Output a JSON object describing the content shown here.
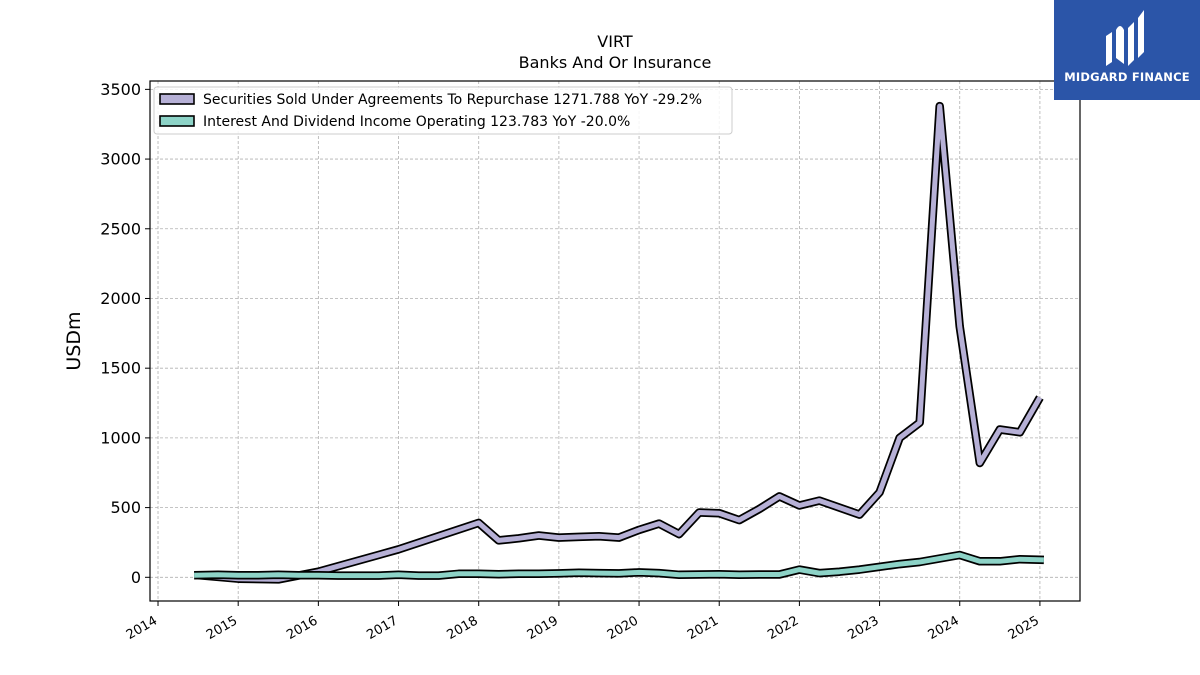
{
  "chart_data": {
    "type": "line",
    "title": "VIRT",
    "subtitle": "Banks And Or Insurance",
    "xlabel": "",
    "ylabel": "USDm",
    "xlim": [
      2013.9,
      2025.5
    ],
    "ylim": [
      -170,
      3560
    ],
    "y_ticks": [
      0,
      500,
      1000,
      1500,
      2000,
      2500,
      3000,
      3500
    ],
    "x_ticks": [
      "2014",
      "2015",
      "2016",
      "2017",
      "2018",
      "2019",
      "2020",
      "2021",
      "2022",
      "2023",
      "2024",
      "2025"
    ],
    "grid": true,
    "legend_position": "top-left",
    "series": [
      {
        "name": "Securities Sold Under Agreements To Repurchase",
        "legend_label": "Securities Sold Under Agreements To Repurchase  1271.788 YoY -29.2%",
        "color": "#b6b0d6",
        "points": [
          [
            2014.5,
            15
          ],
          [
            2015.0,
            -10
          ],
          [
            2015.5,
            -15
          ],
          [
            2016.0,
            40
          ],
          [
            2017.0,
            200
          ],
          [
            2018.0,
            390
          ],
          [
            2018.25,
            265
          ],
          [
            2018.5,
            280
          ],
          [
            2018.75,
            300
          ],
          [
            2019.0,
            285
          ],
          [
            2019.25,
            290
          ],
          [
            2019.5,
            295
          ],
          [
            2019.75,
            285
          ],
          [
            2020.0,
            340
          ],
          [
            2020.25,
            385
          ],
          [
            2020.5,
            310
          ],
          [
            2020.75,
            465
          ],
          [
            2021.0,
            460
          ],
          [
            2021.25,
            410
          ],
          [
            2021.5,
            490
          ],
          [
            2021.75,
            580
          ],
          [
            2022.0,
            515
          ],
          [
            2022.25,
            550
          ],
          [
            2022.5,
            500
          ],
          [
            2022.75,
            450
          ],
          [
            2023.0,
            610
          ],
          [
            2023.25,
            1000
          ],
          [
            2023.5,
            1110
          ],
          [
            2023.75,
            3380
          ],
          [
            2024.0,
            1800
          ],
          [
            2024.25,
            820
          ],
          [
            2024.5,
            1060
          ],
          [
            2024.75,
            1040
          ],
          [
            2025.0,
            1290
          ]
        ]
      },
      {
        "name": "Interest And Dividend Income Operating",
        "legend_label": "Interest And Dividend Income Operating  123.783 YoY -20.0%",
        "color": "#8dd3c7",
        "points": [
          [
            2014.45,
            15
          ],
          [
            2014.75,
            18
          ],
          [
            2015.0,
            15
          ],
          [
            2015.25,
            15
          ],
          [
            2015.5,
            18
          ],
          [
            2015.75,
            15
          ],
          [
            2016.0,
            15
          ],
          [
            2016.25,
            12
          ],
          [
            2016.5,
            12
          ],
          [
            2016.75,
            12
          ],
          [
            2017.0,
            18
          ],
          [
            2017.25,
            12
          ],
          [
            2017.5,
            12
          ],
          [
            2017.75,
            25
          ],
          [
            2018.0,
            25
          ],
          [
            2018.25,
            22
          ],
          [
            2018.5,
            25
          ],
          [
            2018.75,
            25
          ],
          [
            2019.0,
            28
          ],
          [
            2019.25,
            32
          ],
          [
            2019.5,
            30
          ],
          [
            2019.75,
            28
          ],
          [
            2020.0,
            35
          ],
          [
            2020.25,
            30
          ],
          [
            2020.5,
            18
          ],
          [
            2020.75,
            20
          ],
          [
            2021.0,
            22
          ],
          [
            2021.25,
            18
          ],
          [
            2021.5,
            20
          ],
          [
            2021.75,
            20
          ],
          [
            2022.0,
            55
          ],
          [
            2022.25,
            30
          ],
          [
            2022.5,
            40
          ],
          [
            2022.75,
            55
          ],
          [
            2023.0,
            75
          ],
          [
            2023.25,
            95
          ],
          [
            2023.5,
            110
          ],
          [
            2023.75,
            135
          ],
          [
            2024.0,
            160
          ],
          [
            2024.25,
            115
          ],
          [
            2024.5,
            115
          ],
          [
            2024.75,
            130
          ],
          [
            2025.05,
            125
          ]
        ]
      }
    ]
  },
  "logo": {
    "name": "MIDGARD FINANCE",
    "monogram": "M"
  }
}
